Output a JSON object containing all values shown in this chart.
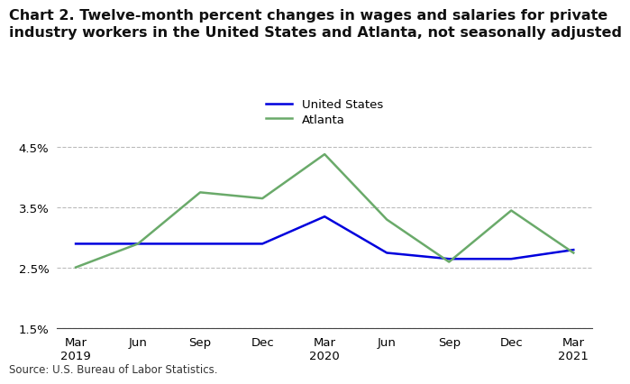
{
  "title_line1": "Chart 2. Twelve-month percent changes in wages and salaries for private",
  "title_line2": "industry workers in the United States and Atlanta, not seasonally adjusted",
  "x_labels": [
    "Mar\n2019",
    "Jun",
    "Sep",
    "Dec",
    "Mar\n2020",
    "Jun",
    "Sep",
    "Dec",
    "Mar\n2021"
  ],
  "us_data": [
    2.9,
    2.9,
    2.9,
    2.9,
    3.35,
    2.75,
    2.65,
    2.65,
    2.8
  ],
  "atlanta_data": [
    2.51,
    2.9,
    3.75,
    3.65,
    4.38,
    3.3,
    2.6,
    3.45,
    2.75
  ],
  "us_color": "#0000dd",
  "atlanta_color": "#6aaa6a",
  "ylim": [
    1.5,
    4.7
  ],
  "yticks": [
    1.5,
    2.5,
    3.5,
    4.5
  ],
  "ytick_labels": [
    "1.5%",
    "2.5%",
    "3.5%",
    "4.5%"
  ],
  "grid_color": "#bbbbbb",
  "background_color": "#ffffff",
  "source_text": "Source: U.S. Bureau of Labor Statistics.",
  "legend_labels": [
    "United States",
    "Atlanta"
  ],
  "title_fontsize": 11.5,
  "tick_fontsize": 9.5,
  "legend_fontsize": 9.5,
  "source_fontsize": 8.5,
  "line_width": 1.8
}
